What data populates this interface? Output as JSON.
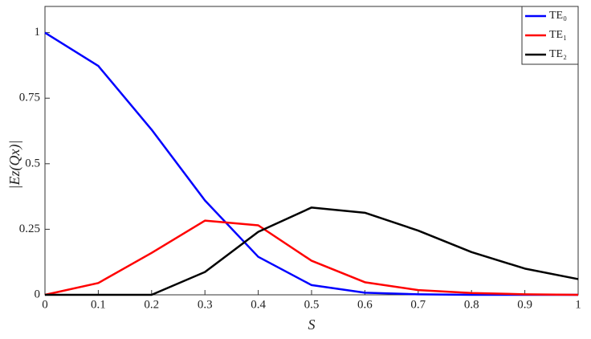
{
  "chart_data": {
    "type": "line",
    "xlabel": "S",
    "ylabel": "|Ez(Qx)|",
    "x": [
      0,
      0.1,
      0.2,
      0.3,
      0.4,
      0.5,
      0.6,
      0.7,
      0.8,
      0.9,
      1
    ],
    "series": [
      {
        "name": "TE₀",
        "color": "#0000ff",
        "values": [
          1,
          0.873,
          0.63,
          0.36,
          0.145,
          0.037,
          0.008,
          0.002,
          0,
          0,
          0
        ]
      },
      {
        "name": "TE₁",
        "color": "#ff0000",
        "values": [
          0,
          0.045,
          0.16,
          0.283,
          0.265,
          0.13,
          0.048,
          0.018,
          0.007,
          0.002,
          0
        ]
      },
      {
        "name": "TE₂",
        "color": "#000000",
        "values": [
          0,
          0,
          0,
          0.087,
          0.24,
          0.333,
          0.313,
          0.245,
          0.163,
          0.1,
          0.06
        ]
      }
    ],
    "xlim": [
      0,
      1
    ],
    "xticks": [
      0,
      0.1,
      0.2,
      0.3,
      0.4,
      0.5,
      0.6,
      0.7,
      0.8,
      0.9,
      1
    ],
    "ylim": [
      0,
      1.1
    ],
    "yticks": [
      0,
      0.25,
      0.5,
      0.75,
      1
    ],
    "legend": "upper-right"
  }
}
